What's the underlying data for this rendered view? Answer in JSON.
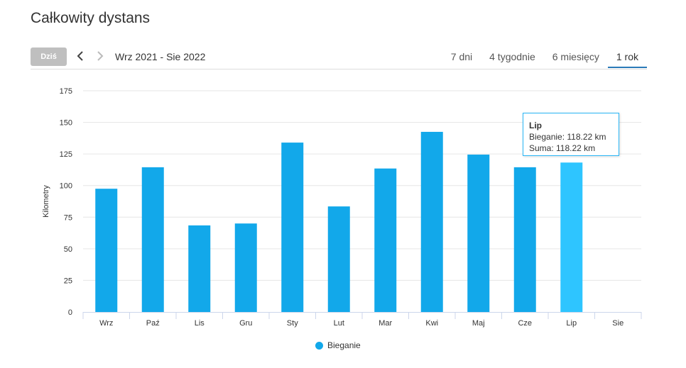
{
  "header": {
    "title": "Całkowity dystans",
    "today_label": "Dziś",
    "date_range": "Wrz 2021 - Sie 2022"
  },
  "tabs": [
    {
      "label": "7 dni",
      "active": false
    },
    {
      "label": "4 tygodnie",
      "active": false
    },
    {
      "label": "6 miesięcy",
      "active": false
    },
    {
      "label": "1 rok",
      "active": true
    }
  ],
  "chart_data": {
    "type": "bar",
    "categories": [
      "Wrz",
      "Paź",
      "Lis",
      "Gru",
      "Sty",
      "Lut",
      "Mar",
      "Kwi",
      "Maj",
      "Cze",
      "Lip",
      "Sie"
    ],
    "series": [
      {
        "name": "Bieganie",
        "values": [
          97.5,
          114.5,
          68.5,
          70,
          134,
          83.5,
          113.5,
          142.5,
          124.5,
          114.5,
          118.22,
          0
        ]
      }
    ],
    "ylabel": "Kilometry",
    "xlabel": "",
    "ylim": [
      0,
      175
    ],
    "yticks": [
      0,
      25,
      50,
      75,
      100,
      125,
      150,
      175
    ],
    "grid": true,
    "legend_position": "bottom-center",
    "highlighted_category": "Lip",
    "colors": {
      "bar": "#12a8ea",
      "bar_highlight": "#2ec5ff"
    }
  },
  "tooltip": {
    "title": "Lip",
    "line1": "Bieganie: 118.22 km",
    "line2": "Suma: 118.22 km"
  },
  "legend": {
    "label": "Bieganie",
    "color": "#12a8ea"
  }
}
